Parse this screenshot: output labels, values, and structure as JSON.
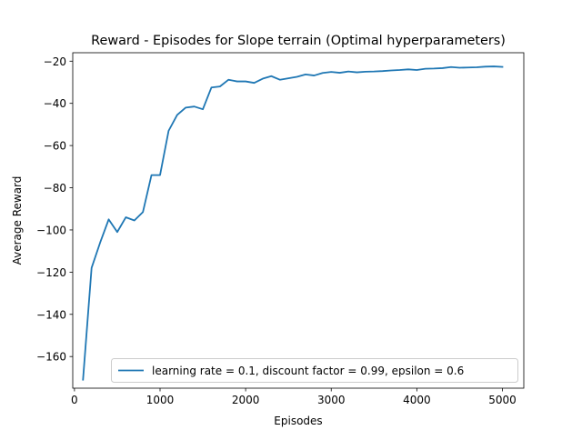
{
  "chart_data": {
    "type": "line",
    "title": "Reward - Episodes for Slope terrain (Optimal hyperparameters)",
    "xlabel": "Episodes",
    "ylabel": "Average Reward",
    "xlim": [
      -20,
      5250
    ],
    "ylim": [
      -175,
      -16
    ],
    "xticks": [
      0,
      1000,
      2000,
      3000,
      4000,
      5000
    ],
    "yticks": [
      -160,
      -140,
      -120,
      -100,
      -80,
      -60,
      -40,
      -20
    ],
    "grid": false,
    "legend_position": "lower right",
    "series": [
      {
        "name": "learning rate = 0.1, discount factor = 0.99, epsilon = 0.6",
        "color": "#1f77b4",
        "x": [
          100,
          200,
          300,
          400,
          500,
          600,
          700,
          800,
          900,
          1000,
          1100,
          1200,
          1300,
          1400,
          1500,
          1600,
          1700,
          1800,
          1900,
          2000,
          2100,
          2200,
          2300,
          2400,
          2500,
          2600,
          2700,
          2800,
          2900,
          3000,
          3100,
          3200,
          3300,
          3400,
          3500,
          3600,
          3700,
          3800,
          3900,
          4000,
          4100,
          4200,
          4300,
          4400,
          4500,
          4600,
          4700,
          4800,
          4900,
          5000
        ],
        "y": [
          -171,
          -118,
          -106,
          -95,
          -101,
          -94,
          -95.5,
          -91.5,
          -74,
          -74,
          -53,
          -45.5,
          -42,
          -41.5,
          -42.8,
          -32.5,
          -32,
          -28.8,
          -29.6,
          -29.6,
          -30.3,
          -28.3,
          -27.1,
          -28.8,
          -28.1,
          -27.4,
          -26.3,
          -26.8,
          -25.6,
          -25.1,
          -25.5,
          -24.9,
          -25.3,
          -25.0,
          -24.9,
          -24.7,
          -24.4,
          -24.2,
          -23.9,
          -24.2,
          -23.6,
          -23.5,
          -23.3,
          -22.8,
          -23.1,
          -23.0,
          -22.9,
          -22.6,
          -22.5,
          -22.7
        ]
      }
    ]
  }
}
